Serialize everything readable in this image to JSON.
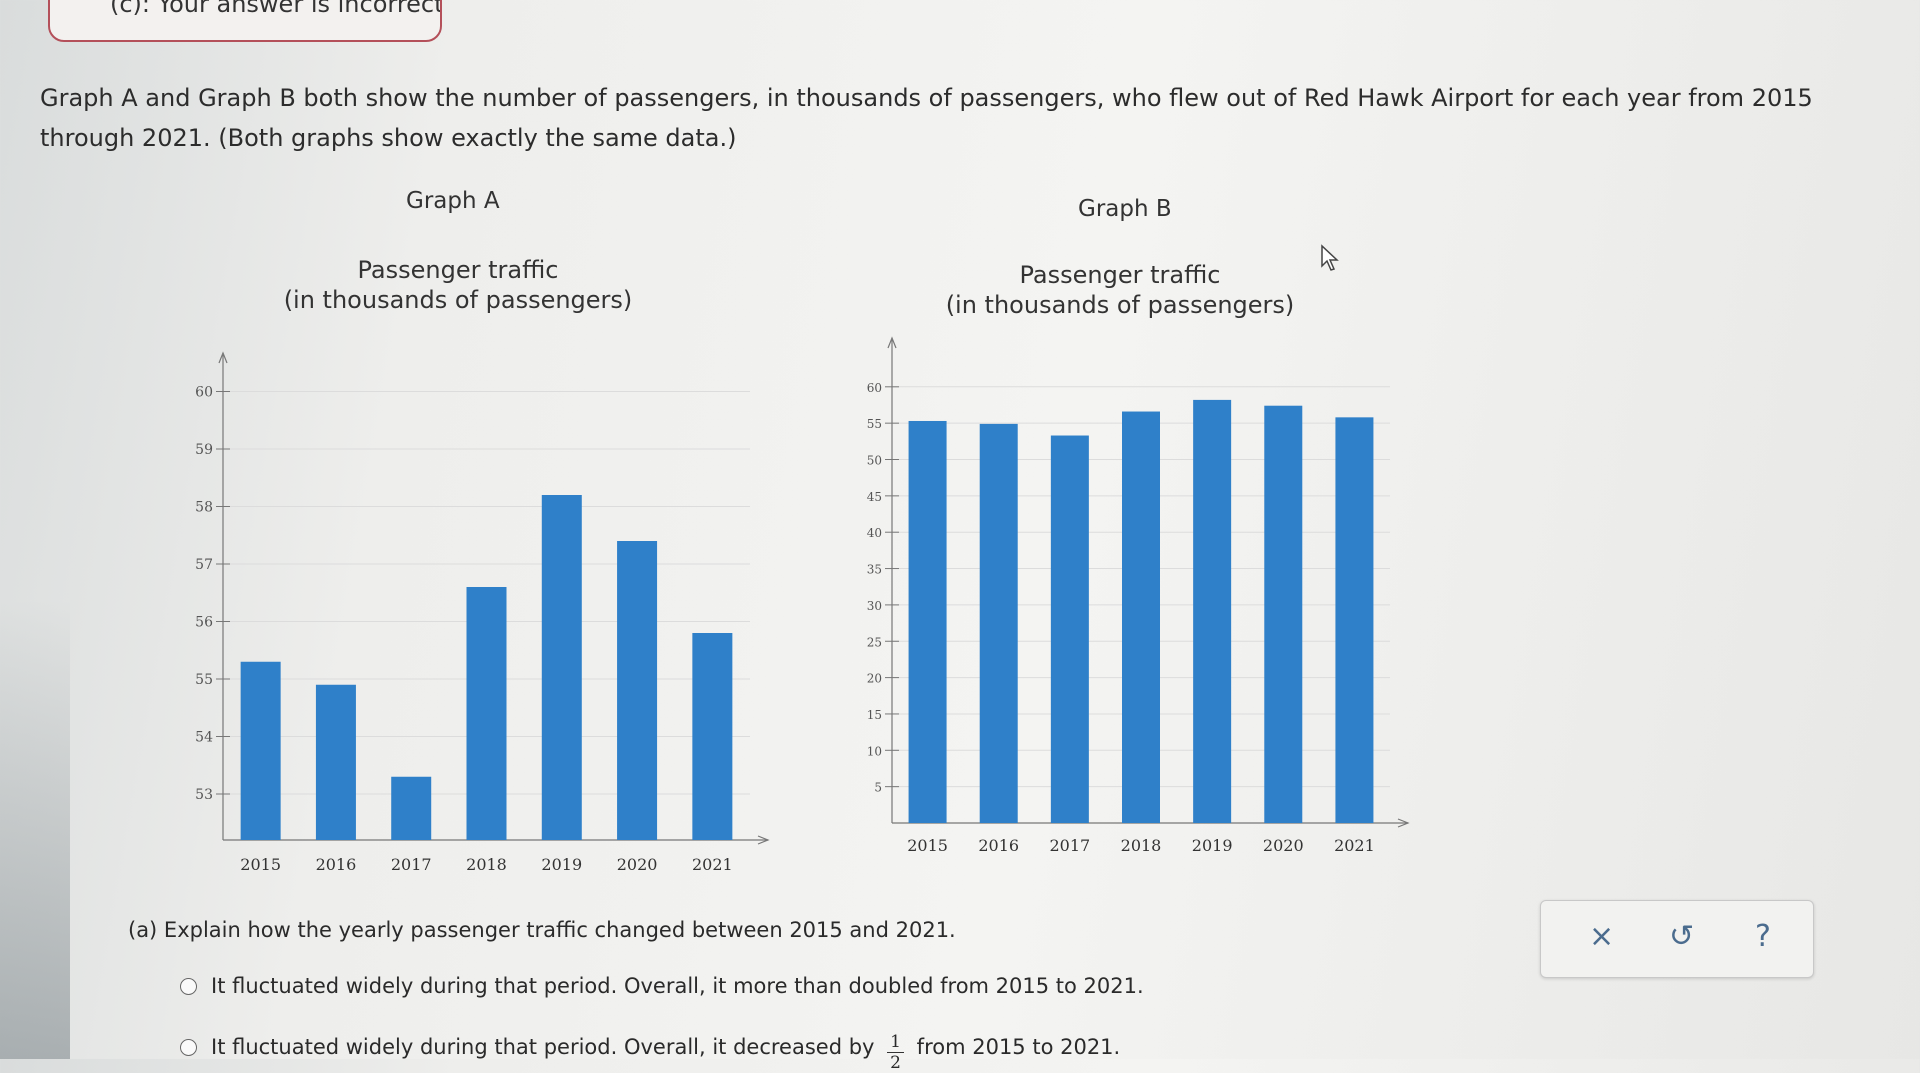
{
  "feedback": {
    "text": "(c): Your answer is incorrect."
  },
  "intro_text": "Graph A and Graph B both show the number of passengers, in thousands of passengers, who flew out of Red Hawk Airport for each year from 2015 through 2021. (Both graphs show exactly the same data.)",
  "graph_a": {
    "title": "Graph A",
    "heading_line1": "Passenger traffic",
    "heading_line2": "(in thousands of passengers)"
  },
  "graph_b": {
    "title": "Graph B",
    "heading_line1": "Passenger traffic",
    "heading_line2": "(in thousands of passengers)"
  },
  "chart_data": [
    {
      "type": "bar",
      "title": "Passenger traffic (in thousands of passengers)",
      "categories": [
        "2015",
        "2016",
        "2017",
        "2018",
        "2019",
        "2020",
        "2021"
      ],
      "values": [
        55.3,
        54.9,
        53.3,
        56.6,
        58.2,
        57.4,
        55.8
      ],
      "ylim": [
        52.2,
        60.2
      ],
      "yticks": [
        53,
        54,
        55,
        56,
        57,
        58,
        59,
        60
      ],
      "color": "#2f80c9",
      "grid": true
    },
    {
      "type": "bar",
      "title": "Passenger traffic (in thousands of passengers)",
      "categories": [
        "2015",
        "2016",
        "2017",
        "2018",
        "2019",
        "2020",
        "2021"
      ],
      "values": [
        55.3,
        54.9,
        53.3,
        56.6,
        58.2,
        57.4,
        55.8
      ],
      "ylim": [
        0,
        63
      ],
      "yticks": [
        5,
        10,
        15,
        20,
        25,
        30,
        35,
        40,
        45,
        50,
        55,
        60
      ],
      "color": "#2f80c9",
      "grid": true
    }
  ],
  "question": {
    "part_a": "(a) Explain how the yearly passenger traffic changed between 2015 and 2021.",
    "option1": "It fluctuated widely during that period. Overall, it more than doubled from 2015 to 2021.",
    "option2_prefix": "It fluctuated widely during that period. Overall, it decreased by",
    "option2_frac_num": "1",
    "option2_frac_den": "2",
    "option2_suffix": "from 2015 to 2021."
  },
  "tools": {
    "clear": "×",
    "undo": "↺",
    "help": "?"
  }
}
